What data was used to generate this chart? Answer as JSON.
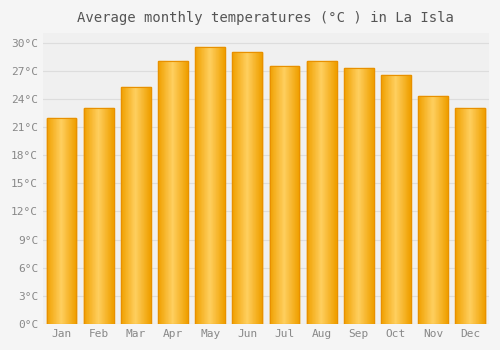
{
  "months": [
    "Jan",
    "Feb",
    "Mar",
    "Apr",
    "May",
    "Jun",
    "Jul",
    "Aug",
    "Sep",
    "Oct",
    "Nov",
    "Dec"
  ],
  "temperatures": [
    22.0,
    23.0,
    25.3,
    28.0,
    29.5,
    29.0,
    27.5,
    28.0,
    27.3,
    26.5,
    24.3,
    23.0
  ],
  "bar_color_left": "#F0A000",
  "bar_color_mid": "#FFD060",
  "bar_color_right": "#F0A000",
  "title": "Average monthly temperatures (°C ) in La Isla",
  "ylim": [
    0,
    31
  ],
  "ytick_step": 3,
  "background_color": "#F5F5F5",
  "plot_bg_color": "#F0F0F0",
  "grid_color": "#DDDDDD",
  "title_fontsize": 10,
  "tick_fontsize": 8,
  "font_color": "#888888"
}
